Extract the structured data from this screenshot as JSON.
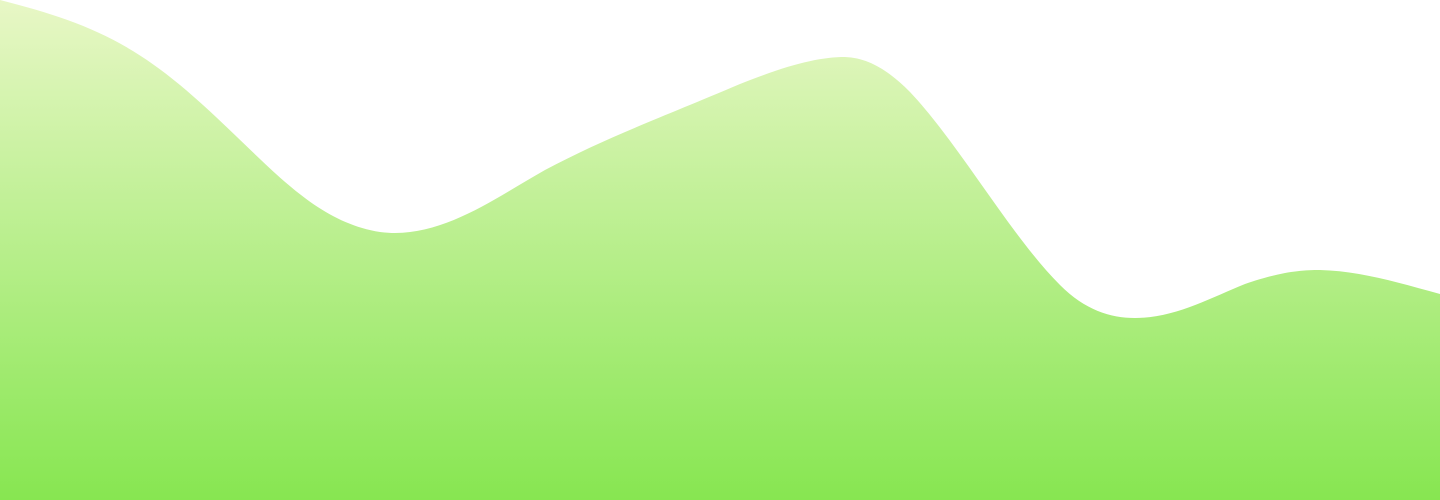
{
  "background": {
    "color": "#ffffff"
  },
  "wave": {
    "gradient_top_color": "#e8f7c6",
    "gradient_bottom_color": "#87e651"
  }
}
